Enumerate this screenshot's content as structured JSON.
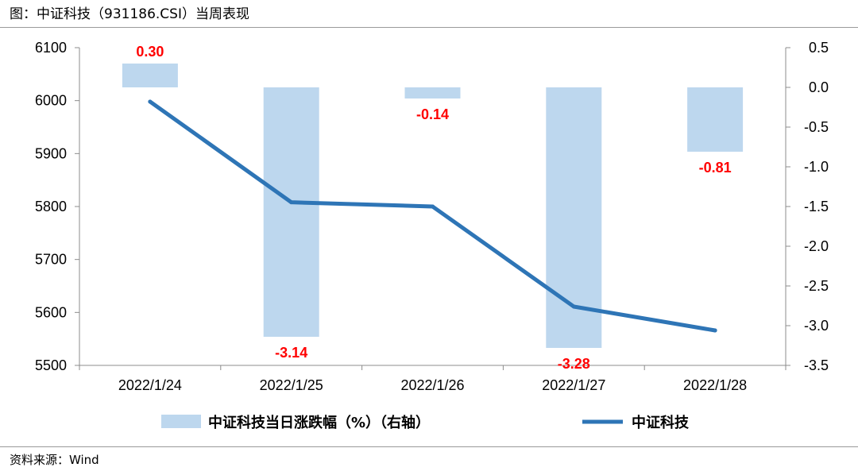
{
  "figure": {
    "title": "图：中证科技（931186.CSI）当周表现",
    "source": "资料来源：Wind"
  },
  "chart_data": {
    "type": "bar+line",
    "categories": [
      "2022/1/24",
      "2022/1/25",
      "2022/1/26",
      "2022/1/27",
      "2022/1/28"
    ],
    "series": [
      {
        "name": "中证科技当日涨跌幅（%）（右轴）",
        "type": "bar",
        "axis": "right",
        "color": "#BDD7EE",
        "values": [
          0.3,
          -3.14,
          -0.14,
          -3.28,
          -0.81
        ],
        "labels": [
          "0.30",
          "-3.14",
          "-0.14",
          "-3.28",
          "-0.81"
        ],
        "label_color": "#FF0000"
      },
      {
        "name": "中证科技",
        "type": "line",
        "axis": "left",
        "color": "#2E75B6",
        "values": [
          5998,
          5808,
          5800,
          5611,
          5566
        ]
      }
    ],
    "left_axis": {
      "ylim": [
        5500,
        6100
      ],
      "ticks": [
        "5500",
        "5600",
        "5700",
        "5800",
        "5900",
        "6000",
        "6100"
      ],
      "tick_values": [
        5500,
        5600,
        5700,
        5800,
        5900,
        6000,
        6100
      ]
    },
    "right_axis": {
      "ylim": [
        -3.5,
        0.5
      ],
      "ticks": [
        "-3.5",
        "-3.0",
        "-2.5",
        "-2.0",
        "-1.5",
        "-1.0",
        "-0.5",
        "0.0",
        "0.5"
      ],
      "tick_values": [
        -3.5,
        -3.0,
        -2.5,
        -2.0,
        -1.5,
        -1.0,
        -0.5,
        0.0,
        0.5
      ]
    },
    "grid": false,
    "legend_position": "bottom"
  }
}
